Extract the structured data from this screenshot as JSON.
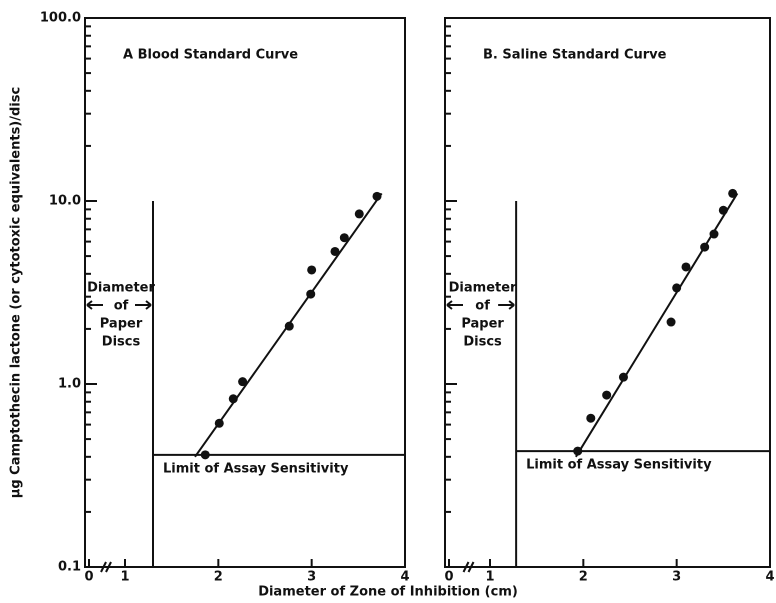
{
  "chart_data": [
    {
      "type": "scatter",
      "title": "A  Blood Standard Curve",
      "ylabel": "µg Camptothecin lactone (or cytotoxic equivalents)/disc",
      "xlabel": "Diameter of Zone of Inhibition (cm)",
      "log_y": true,
      "color": "#111111",
      "xlim": [
        0,
        4
      ],
      "xticks": [
        0,
        1,
        2,
        3,
        4
      ],
      "ylim": [
        0.1,
        100
      ],
      "yticks": [
        {
          "value": 0.1,
          "label": "0.1"
        },
        {
          "value": 1,
          "label": "1.0"
        },
        {
          "value": 10,
          "label": "10.0"
        },
        {
          "value": 100,
          "label": "100.0"
        }
      ],
      "x": [
        1.86,
        2.01,
        2.16,
        2.26,
        2.76,
        2.99,
        3.0,
        3.25,
        3.35,
        3.51,
        3.7
      ],
      "values": [
        0.41,
        0.61,
        0.83,
        1.03,
        2.07,
        3.1,
        4.2,
        5.3,
        6.3,
        8.5,
        10.6
      ],
      "fit_line": {
        "x": [
          1.75,
          3.75
        ],
        "y": [
          0.4,
          11
        ]
      },
      "disc_diameter": 1.3,
      "disc_label": [
        "Diameter",
        "of",
        "Paper",
        "Discs"
      ],
      "limit": {
        "value": 0.41,
        "label": "Limit of Assay Sensitivity"
      }
    },
    {
      "type": "scatter",
      "title": "B. Saline Standard Curve",
      "log_y": true,
      "color": "#111111",
      "xlim": [
        0,
        4
      ],
      "xticks": [
        0,
        1,
        2,
        3,
        4
      ],
      "ylim": [
        0.1,
        100
      ],
      "yticks": [
        0.1,
        1,
        10,
        100
      ],
      "x": [
        1.94,
        2.08,
        2.25,
        2.43,
        2.94,
        3.0,
        3.1,
        3.3,
        3.4,
        3.5,
        3.6
      ],
      "values": [
        0.43,
        0.65,
        0.87,
        1.09,
        2.18,
        3.35,
        4.36,
        5.6,
        6.6,
        8.9,
        11.0
      ],
      "fit_line": {
        "x": [
          1.92,
          3.65
        ],
        "y": [
          0.4,
          11
        ]
      },
      "disc_diameter": 1.28,
      "disc_label": [
        "Diameter",
        "of",
        "Paper",
        "Discs"
      ],
      "limit": {
        "value": 0.43,
        "label": "Limit of Assay Sensitivity"
      }
    }
  ]
}
